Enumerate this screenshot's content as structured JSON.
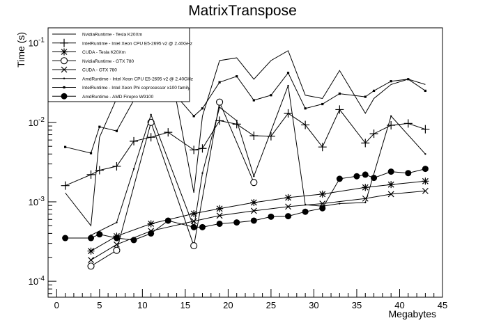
{
  "chart_data": {
    "type": "line",
    "title": "MatrixTranspose",
    "xlabel": "Megabytes",
    "ylabel": "Time (s)",
    "xlim": [
      -1,
      45
    ],
    "ylim": [
      6.3e-05,
      0.155
    ],
    "yscale": "log",
    "grid": false,
    "legend_position": "top-left",
    "x_ticks": [
      0,
      5,
      10,
      15,
      20,
      25,
      30,
      35,
      40,
      45
    ],
    "x_tick_labels": [
      "0",
      "5",
      "10",
      "15",
      "20",
      "25",
      "30",
      "35",
      "40",
      "45"
    ],
    "y_ticks": [
      0.0001,
      0.001,
      0.01,
      0.1
    ],
    "y_tick_labels": [
      {
        "base": "10",
        "exp": "-4"
      },
      {
        "base": "10",
        "exp": "-3"
      },
      {
        "base": "10",
        "exp": "-2"
      },
      {
        "base": "10",
        "exp": "-1"
      }
    ],
    "series": [
      {
        "name": "NvidiaRuntime - Tesla K20Xm",
        "marker": "none",
        "x": [
          1,
          4,
          5,
          7,
          9,
          11,
          13,
          16,
          17,
          19,
          21,
          23,
          25,
          27,
          29,
          31,
          33,
          36,
          37,
          39,
          41,
          43
        ],
        "y": [
          0.0013,
          0.0005,
          0.0065,
          0.02,
          0.023,
          0.026,
          0.065,
          0.0013,
          0.012,
          0.06,
          0.065,
          0.035,
          0.06,
          0.08,
          0.022,
          0.02,
          0.045,
          0.013,
          0.02,
          0.03,
          0.035,
          0.03
        ]
      },
      {
        "name": "IntelRuntime - Intel Xeon CPU E5-2695 v2 @ 2.40GHz",
        "marker": "plus",
        "x": [
          1,
          4,
          5,
          7,
          9,
          11,
          13,
          16,
          17,
          19,
          21,
          23,
          25,
          27,
          29,
          31,
          33,
          36,
          37,
          39,
          41,
          43
        ],
        "y": [
          0.0016,
          0.0022,
          0.0025,
          0.0028,
          0.0058,
          0.0065,
          0.0075,
          0.0045,
          0.0047,
          0.0105,
          0.0095,
          0.0068,
          0.0067,
          0.013,
          0.0093,
          0.0049,
          0.0145,
          0.0055,
          0.0072,
          0.0092,
          0.0097,
          0.0082
        ]
      },
      {
        "name": "CUDA - Tesla K20Xm",
        "marker": "star",
        "x": [
          4,
          7,
          11,
          16,
          19,
          23,
          27,
          31,
          36,
          39,
          43
        ],
        "y": [
          0.00024,
          0.00037,
          0.00053,
          0.00071,
          0.00082,
          0.00098,
          0.00113,
          0.00125,
          0.00152,
          0.00165,
          0.00182
        ]
      },
      {
        "name": "NvidiaRuntime - GTX 780",
        "marker": "open-circle",
        "x": [
          4,
          7,
          11,
          16,
          19,
          23
        ],
        "y": [
          0.000155,
          0.000245,
          0.01,
          0.00028,
          0.018,
          0.00175
        ]
      },
      {
        "name": "CUDA - GTX 780",
        "marker": "x",
        "x": [
          4,
          7,
          11,
          16,
          19,
          23,
          27,
          31,
          36,
          39,
          43
        ],
        "y": [
          0.000185,
          0.00029,
          0.00043,
          0.00057,
          0.00067,
          0.00077,
          0.00087,
          0.00095,
          0.0011,
          0.00125,
          0.00137
        ]
      },
      {
        "name": "AmdRuntime - Intel Xeon CPU E5-2695 v2 @ 2.40GHz",
        "marker": "small-dot",
        "x": [
          4,
          7,
          9,
          11,
          16,
          17,
          19,
          21,
          23,
          27,
          29,
          31,
          33,
          36,
          39,
          43
        ],
        "y": [
          0.00038,
          0.00055,
          0.0026,
          0.0125,
          0.00048,
          0.0023,
          0.0155,
          0.0105,
          0.0021,
          0.029,
          0.00092,
          0.00088,
          0.00095,
          0.00098,
          0.012,
          0.004
        ]
      },
      {
        "name": "IntelRuntime - Intel Xeon Phi coprocessor x100 family",
        "marker": "square-dot",
        "x": [
          1,
          4,
          5,
          7,
          9,
          11,
          13,
          16,
          17,
          19,
          21,
          23,
          25,
          27,
          29,
          31,
          33,
          36,
          37,
          39,
          41,
          43
        ],
        "y": [
          0.0049,
          0.0041,
          0.0088,
          0.0078,
          0.019,
          0.021,
          0.028,
          0.012,
          0.015,
          0.032,
          0.038,
          0.019,
          0.022,
          0.042,
          0.015,
          0.017,
          0.023,
          0.021,
          0.025,
          0.033,
          0.035,
          0.025
        ]
      },
      {
        "name": "AmdRuntime - AMD Firepro W9100",
        "marker": "filled-circle",
        "x": [
          1,
          4,
          5,
          7,
          9,
          11,
          13,
          16,
          17,
          19,
          21,
          23,
          25,
          27,
          29,
          31,
          33,
          35,
          36,
          37,
          39,
          41,
          43
        ],
        "y": [
          0.00035,
          0.00035,
          0.00039,
          0.00035,
          0.00033,
          0.0004,
          0.00058,
          0.00048,
          0.00048,
          0.00053,
          0.00055,
          0.00058,
          0.00065,
          0.00066,
          0.00075,
          0.00083,
          0.00195,
          0.0021,
          0.0022,
          0.002,
          0.0024,
          0.0023,
          0.0026
        ]
      }
    ]
  }
}
